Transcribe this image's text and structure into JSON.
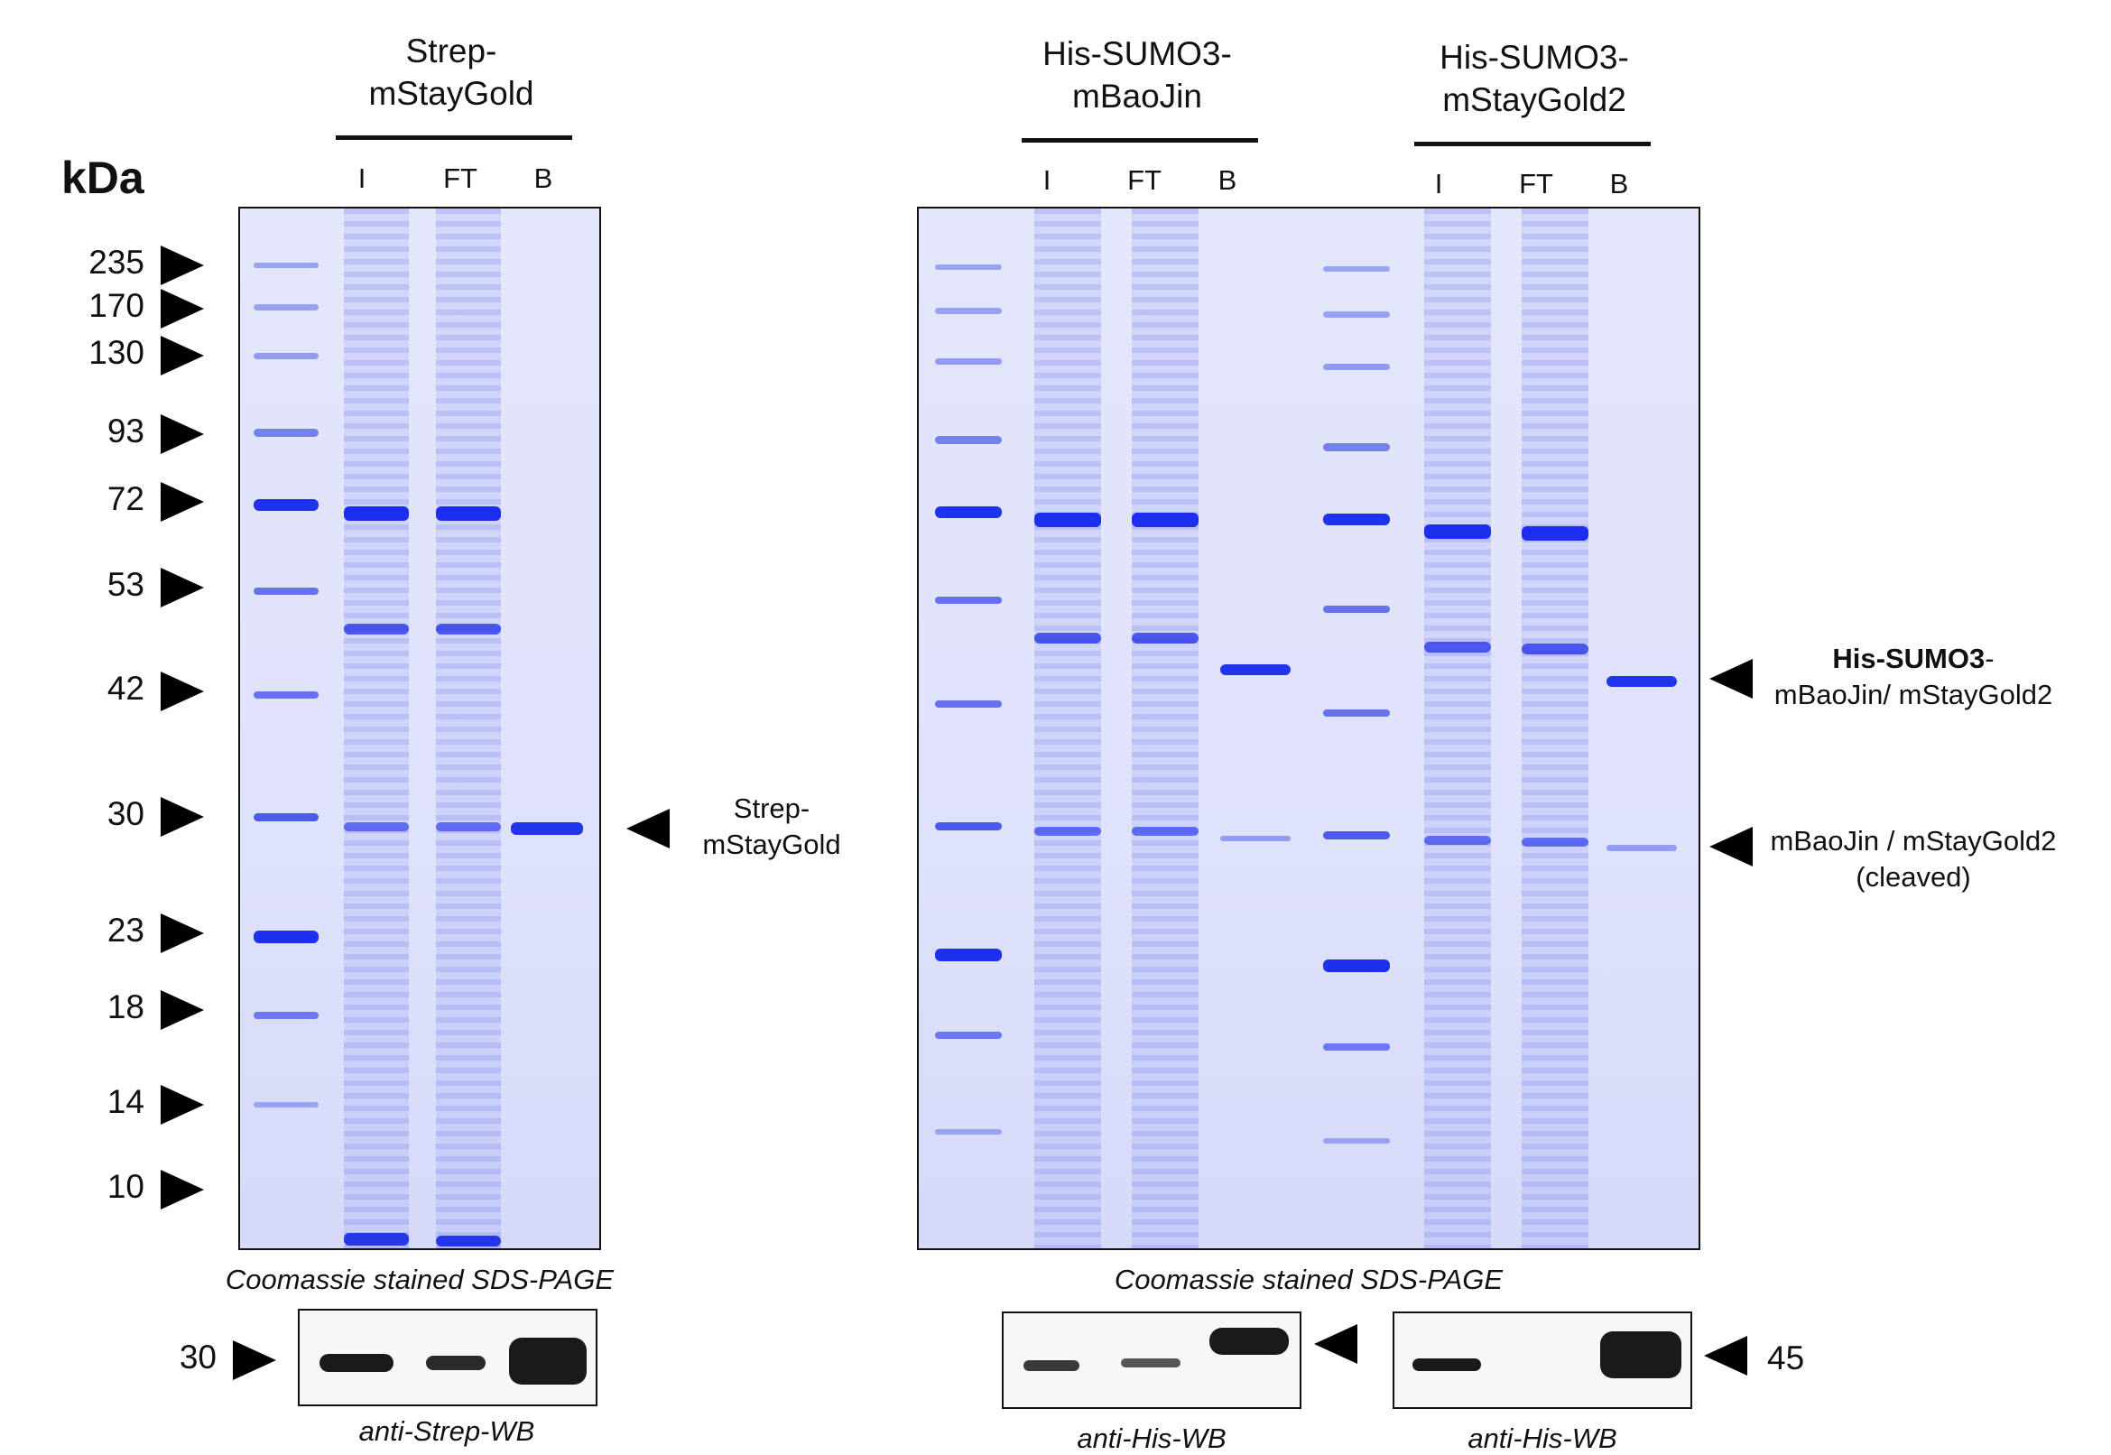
{
  "headers": {
    "strep": [
      "Strep-",
      "mStayGold"
    ],
    "baojin": [
      "His-SUMO3-",
      "mBaoJin"
    ],
    "staygold2": [
      "His-SUMO3-",
      "mStayGold2"
    ]
  },
  "lane_labels": [
    "I",
    "FT",
    "B"
  ],
  "kda_label": "kDa",
  "markers": [
    "235",
    "170",
    "130",
    "93",
    "72",
    "53",
    "42",
    "30",
    "23",
    "18",
    "14",
    "10"
  ],
  "annotations": {
    "strep": [
      "Strep-",
      "mStayGold"
    ],
    "his_full_bold": "His-SUMO3",
    "his_full_rest": "-",
    "his_full_line2": "mBaoJin/ mStayGold2",
    "cleaved_line1": "mBaoJin / mStayGold2",
    "cleaved_line2": "(cleaved)"
  },
  "captions": {
    "gel_left": "Coomassie stained SDS-PAGE",
    "gel_right": "Coomassie stained SDS-PAGE",
    "wb_left": "anti-Strep-WB",
    "wb_mid": "anti-His-WB",
    "wb_right": "anti-His-WB"
  },
  "wb_markers": {
    "left": "30",
    "right": "45"
  },
  "colors": {
    "gel_background": "#e0e3fb",
    "stain": "#2536e8",
    "ink": "#111111"
  }
}
